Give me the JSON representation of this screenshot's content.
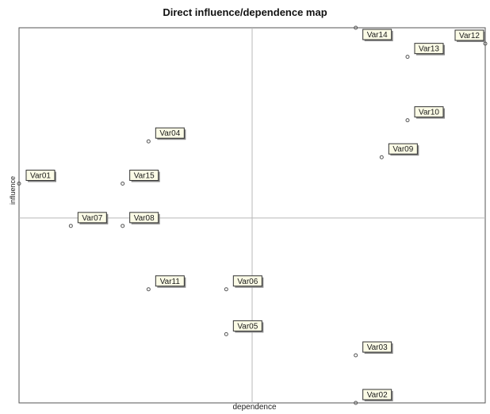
{
  "chart_data": {
    "type": "scatter",
    "title": "Direct influence/dependence map",
    "xlabel": "dependence",
    "ylabel": "influence",
    "xlim": [
      0,
      18
    ],
    "ylim": [
      0,
      14.2
    ],
    "x_threshold": 9,
    "y_threshold": 7,
    "grid": false,
    "points": [
      {
        "label": "Var01",
        "x": 0,
        "y": 8.3
      },
      {
        "label": "Var02",
        "x": 13,
        "y": 0
      },
      {
        "label": "Var03",
        "x": 13,
        "y": 1.8
      },
      {
        "label": "Var04",
        "x": 5,
        "y": 9.9
      },
      {
        "label": "Var05",
        "x": 8,
        "y": 2.6
      },
      {
        "label": "Var06",
        "x": 8,
        "y": 4.3
      },
      {
        "label": "Var07",
        "x": 2,
        "y": 6.7
      },
      {
        "label": "Var08",
        "x": 4,
        "y": 6.7
      },
      {
        "label": "Var09",
        "x": 14,
        "y": 9.3
      },
      {
        "label": "Var10",
        "x": 15,
        "y": 10.7
      },
      {
        "label": "Var11",
        "x": 5,
        "y": 4.3
      },
      {
        "label": "Var12",
        "x": 18,
        "y": 13.6
      },
      {
        "label": "Var13",
        "x": 15,
        "y": 13.1
      },
      {
        "label": "Var14",
        "x": 13,
        "y": 14.2
      },
      {
        "label": "Var15",
        "x": 4,
        "y": 8.3
      }
    ]
  },
  "colors": {
    "label_fill": "#fbfbe6",
    "label_border": "#333333",
    "label_shadow": "#888888",
    "axis_line": "#b8b8b8",
    "frame": "#555555",
    "marker": "#555555"
  }
}
